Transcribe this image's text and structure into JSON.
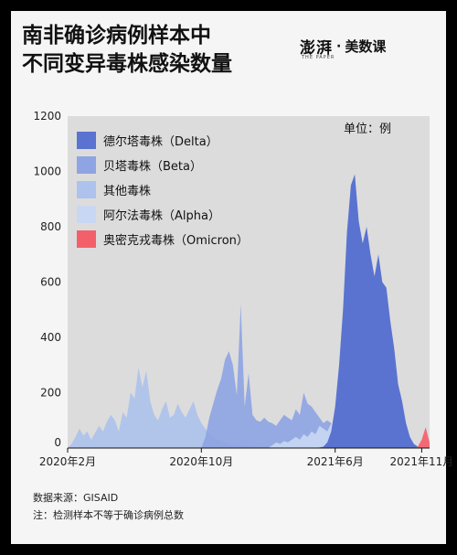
{
  "header": {
    "title_line1": "南非确诊病例样本中",
    "title_line2": "不同变异毒株感染数量",
    "brand_logo": "澎湃",
    "brand_sub": "THE PAPER",
    "brand_dot": "·",
    "brand_name": "美数课"
  },
  "colors": {
    "background": "#f5f5f5",
    "frame": "#000000",
    "delta": "#5a73d1",
    "beta": "#8ea4e3",
    "other": "#adc2ec",
    "alpha": "#c8d7f3",
    "omicron": "#f4606a"
  },
  "chart_data": {
    "type": "area",
    "unit_label": "单位：例",
    "y_ticks": [
      "0",
      "200",
      "400",
      "600",
      "800",
      "1000",
      "1200"
    ],
    "ylim": [
      0,
      1200
    ],
    "x_ticks": [
      "2020年2月",
      "2020年10月",
      "2021年6月",
      "2021年11月"
    ],
    "x_tick_weeks": [
      0,
      34,
      68,
      90
    ],
    "xlim_weeks": [
      0,
      92
    ],
    "legend_placement": "top-left",
    "series": [
      {
        "name": "德尔塔毒株（Delta）",
        "color": "#5a73d1",
        "values": [
          0,
          0,
          0,
          0,
          0,
          0,
          0,
          0,
          0,
          0,
          0,
          0,
          0,
          0,
          0,
          0,
          0,
          0,
          0,
          0,
          0,
          0,
          0,
          0,
          0,
          0,
          0,
          0,
          0,
          0,
          0,
          0,
          0,
          0,
          0,
          0,
          0,
          0,
          0,
          0,
          0,
          0,
          0,
          0,
          0,
          0,
          0,
          0,
          0,
          0,
          0,
          0,
          0,
          0,
          0,
          0,
          0,
          0,
          0,
          0,
          0,
          0,
          0,
          0,
          2,
          5,
          20,
          60,
          150,
          300,
          500,
          780,
          950,
          990,
          820,
          740,
          800,
          700,
          620,
          700,
          600,
          580,
          460,
          360,
          230,
          170,
          90,
          40,
          15,
          5,
          0,
          0,
          0
        ]
      },
      {
        "name": "贝塔毒株（Beta）",
        "color": "#8ea4e3",
        "values": [
          0,
          0,
          0,
          0,
          0,
          0,
          0,
          0,
          0,
          0,
          0,
          0,
          0,
          0,
          0,
          0,
          0,
          0,
          0,
          0,
          0,
          0,
          0,
          0,
          0,
          0,
          0,
          0,
          0,
          0,
          0,
          0,
          0,
          0,
          0,
          40,
          110,
          160,
          210,
          250,
          320,
          350,
          300,
          190,
          520,
          150,
          270,
          120,
          100,
          95,
          110,
          95,
          90,
          80,
          100,
          120,
          110,
          100,
          140,
          120,
          200,
          160,
          150,
          130,
          110,
          90,
          100,
          90,
          80,
          70,
          60,
          50,
          40,
          30,
          20,
          15,
          10,
          5,
          3,
          0,
          0,
          0,
          0,
          0,
          0,
          0,
          0,
          0,
          0,
          0,
          0,
          0,
          0
        ]
      },
      {
        "name": "其他毒株",
        "color": "#adc2ec",
        "values": [
          0,
          15,
          40,
          70,
          45,
          60,
          30,
          55,
          80,
          60,
          95,
          120,
          100,
          60,
          130,
          110,
          200,
          180,
          290,
          220,
          280,
          170,
          120,
          100,
          140,
          170,
          110,
          120,
          160,
          130,
          110,
          140,
          170,
          120,
          90,
          70,
          50,
          40,
          30,
          25,
          20,
          15,
          10,
          10,
          8,
          8,
          6,
          6,
          5,
          5,
          5,
          4,
          4,
          4,
          3,
          3,
          3,
          3,
          2,
          2,
          2,
          2,
          2,
          2,
          2,
          2,
          2,
          2,
          2,
          2,
          1,
          1,
          1,
          1,
          1,
          1,
          1,
          1,
          1,
          1,
          1,
          1,
          1,
          0,
          0,
          0,
          0,
          0,
          0,
          0,
          0,
          0,
          0
        ]
      },
      {
        "name": "阿尔法毒株（Alpha）",
        "color": "#c8d7f3",
        "values": [
          0,
          0,
          0,
          0,
          0,
          0,
          0,
          0,
          0,
          0,
          0,
          0,
          0,
          0,
          0,
          0,
          0,
          0,
          0,
          0,
          0,
          0,
          0,
          0,
          0,
          0,
          0,
          0,
          0,
          0,
          0,
          0,
          0,
          0,
          0,
          0,
          0,
          0,
          0,
          0,
          0,
          0,
          0,
          0,
          0,
          0,
          0,
          0,
          0,
          0,
          0,
          0,
          10,
          20,
          15,
          25,
          20,
          30,
          40,
          30,
          50,
          40,
          60,
          50,
          80,
          70,
          60,
          90,
          80,
          60,
          50,
          40,
          30,
          20,
          15,
          10,
          5,
          3,
          2,
          1,
          0,
          0,
          0,
          0,
          0,
          0,
          0,
          0,
          0,
          0,
          0,
          0,
          0
        ]
      },
      {
        "name": "奥密克戎毒株（Omicron）",
        "color": "#f4606a",
        "values": [
          0,
          0,
          0,
          0,
          0,
          0,
          0,
          0,
          0,
          0,
          0,
          0,
          0,
          0,
          0,
          0,
          0,
          0,
          0,
          0,
          0,
          0,
          0,
          0,
          0,
          0,
          0,
          0,
          0,
          0,
          0,
          0,
          0,
          0,
          0,
          0,
          0,
          0,
          0,
          0,
          0,
          0,
          0,
          0,
          0,
          0,
          0,
          0,
          0,
          0,
          0,
          0,
          0,
          0,
          0,
          0,
          0,
          0,
          0,
          0,
          0,
          0,
          0,
          0,
          0,
          0,
          0,
          0,
          0,
          0,
          0,
          0,
          0,
          0,
          0,
          0,
          0,
          0,
          0,
          0,
          0,
          0,
          0,
          0,
          0,
          0,
          0,
          0,
          0,
          5,
          30,
          75,
          20
        ]
      }
    ]
  },
  "footer": {
    "source": "数据来源：GISAID",
    "note": "注：检测样本不等于确诊病例总数"
  }
}
